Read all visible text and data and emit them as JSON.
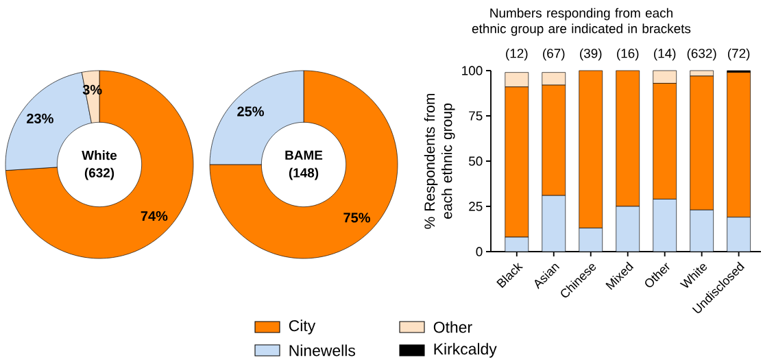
{
  "chart_data": [
    {
      "type": "donut",
      "title": "White",
      "subtitle": "(632)",
      "categories": [
        null,
        null,
        null
      ],
      "values": [
        74,
        23,
        3
      ],
      "colors": [
        "#ff8000",
        "#c6dcf5",
        "#fde1c4"
      ],
      "value_labels": [
        "74%",
        "23%",
        "3%"
      ]
    },
    {
      "type": "donut",
      "title": "BAME",
      "subtitle": "(148)",
      "categories": [
        null,
        null
      ],
      "values": [
        75,
        25
      ],
      "colors": [
        "#ff8000",
        "#c6dcf5"
      ],
      "value_labels": [
        "75%",
        "25%"
      ]
    },
    {
      "type": "bar",
      "stacked": true,
      "title": "Numbers responding from each ethnic group are indicated in brackets",
      "ylabel": "% Respondents from each ethnic group",
      "categories": [
        "Black",
        "Asian",
        "Chinese",
        "Mixed",
        "Other",
        "White",
        "Undisclosed"
      ],
      "series": [
        {
          "name": "Ninewells",
          "color": "#c6dcf5",
          "values": [
            8,
            31,
            13,
            25,
            29,
            23,
            19
          ]
        },
        {
          "name": "City",
          "color": "#ff8000",
          "values": [
            83,
            61,
            87,
            75,
            64,
            74,
            80
          ]
        },
        {
          "name": "Other",
          "color": "#fde1c4",
          "values": [
            8,
            7,
            0,
            0,
            7,
            3,
            0
          ]
        },
        {
          "name": "Kirkcaldy",
          "color": "#000000",
          "values": [
            0,
            0,
            0,
            0,
            0,
            0,
            1
          ]
        }
      ],
      "annotations": [
        "(12)",
        "(67)",
        "(39)",
        "(16)",
        "(14)",
        "(632)",
        "(72)"
      ],
      "ylim": [
        0,
        100
      ],
      "yticks": [
        0,
        25,
        50,
        75,
        100
      ],
      "legend": "bottom"
    }
  ]
}
